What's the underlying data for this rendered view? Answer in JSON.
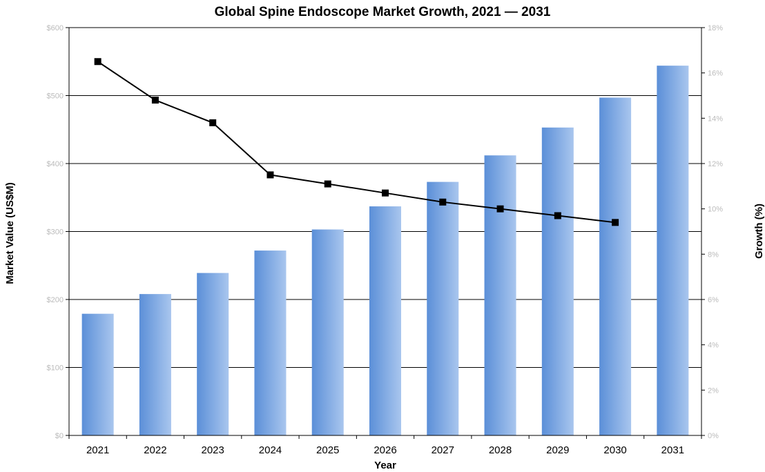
{
  "chart_data": {
    "type": "bar",
    "title": "Global Spine Endoscope Market Growth, 2021 — 2031",
    "xlabel": "Year",
    "ylabel": "Market Value (US$M)",
    "y2label": "Growth (%)",
    "categories": [
      "2021",
      "2022",
      "2023",
      "2024",
      "2025",
      "2026",
      "2027",
      "2028",
      "2029",
      "2030",
      "2031"
    ],
    "ylim": [
      0,
      600
    ],
    "y2lim": [
      0,
      18
    ],
    "yticks": [
      "$0",
      "$100",
      "$200",
      "$300",
      "$400",
      "$500",
      "$600"
    ],
    "y2ticks": [
      "0%",
      "2%",
      "4%",
      "6%",
      "8%",
      "10%",
      "12%",
      "14%",
      "16%",
      "18%"
    ],
    "grid": true,
    "series": [
      {
        "type": "bar",
        "axis": "left",
        "values": [
          179,
          208,
          239,
          272,
          303,
          337,
          373,
          412,
          453,
          497,
          544
        ]
      },
      {
        "type": "line",
        "axis": "right",
        "values": [
          16.5,
          14.8,
          13.8,
          11.5,
          11.1,
          10.7,
          10.3,
          10.0,
          9.7,
          9.4,
          null
        ]
      }
    ],
    "colors": {
      "bar_dark": "#5b8fd8",
      "bar_light": "#a9c6ee",
      "line": "#000000",
      "grid": "#000000"
    }
  }
}
